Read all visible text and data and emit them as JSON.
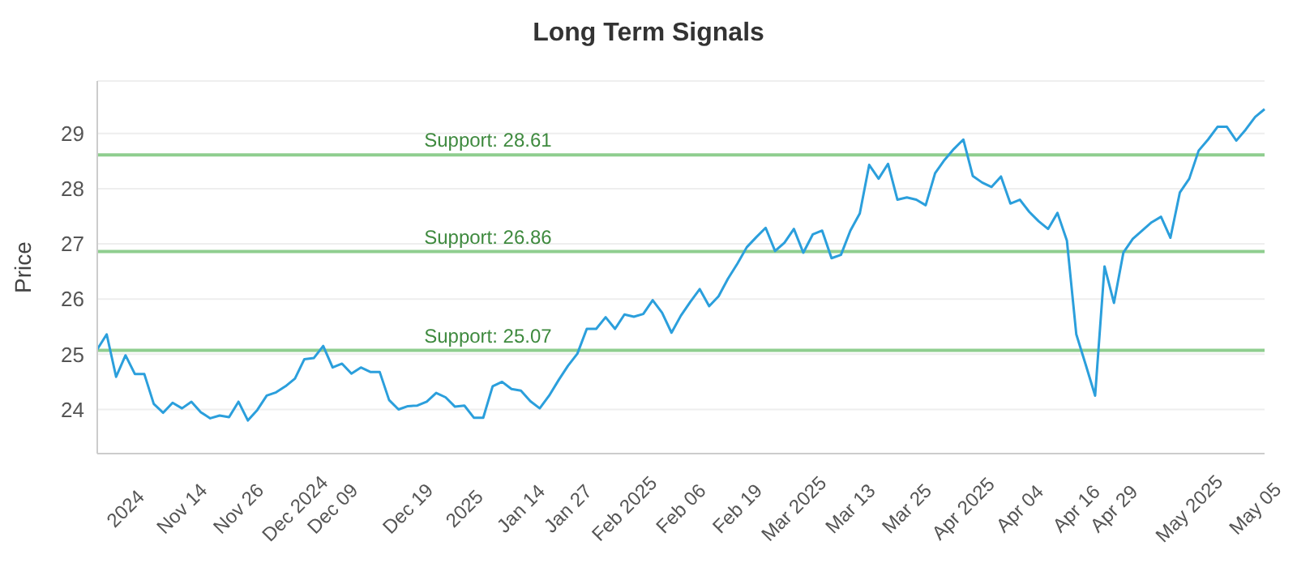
{
  "chart_data": {
    "type": "line",
    "title": "Long Term Signals",
    "ylabel": "Price",
    "categories": [
      null,
      null,
      null,
      "2024",
      null,
      null,
      null,
      null,
      null,
      "Nov 14",
      null,
      null,
      null,
      null,
      null,
      "Nov 26",
      null,
      null,
      null,
      null,
      null,
      "Dec 2024",
      null,
      null,
      null,
      "Dec 09",
      null,
      null,
      null,
      null,
      null,
      null,
      null,
      "Dec 19",
      null,
      null,
      null,
      null,
      null,
      "2025",
      null,
      null,
      null,
      null,
      null,
      "Jan 14",
      null,
      null,
      null,
      null,
      "Jan 27",
      null,
      null,
      null,
      null,
      null,
      "Feb 2025",
      null,
      null,
      null,
      null,
      null,
      "Feb 06",
      null,
      null,
      null,
      null,
      null,
      "Feb 19",
      null,
      null,
      null,
      null,
      null,
      "Mar 2025",
      null,
      null,
      null,
      null,
      null,
      "Mar 13",
      null,
      null,
      null,
      null,
      null,
      "Mar 25",
      null,
      null,
      null,
      null,
      null,
      "Apr 2025",
      null,
      null,
      null,
      null,
      null,
      "Apr 04",
      null,
      null,
      null,
      null,
      null,
      "Apr 16",
      null,
      null,
      null,
      "Apr 29",
      null,
      null,
      null,
      null,
      null,
      null,
      null,
      "May 2025",
      null,
      null,
      null,
      null,
      null,
      null,
      "May 05",
      null
    ],
    "series": [
      {
        "color": "#2b9fdc",
        "values": [
          25.09,
          25.36,
          24.59,
          24.98,
          24.64,
          24.64,
          24.1,
          23.94,
          24.12,
          24.02,
          24.14,
          23.95,
          23.84,
          23.89,
          23.86,
          24.14,
          23.8,
          23.99,
          24.25,
          24.31,
          24.42,
          24.56,
          24.91,
          24.93,
          25.15,
          24.76,
          24.83,
          24.65,
          24.76,
          24.68,
          24.68,
          24.17,
          24.0,
          24.06,
          24.07,
          24.14,
          24.3,
          24.22,
          24.05,
          24.07,
          23.85,
          23.85,
          24.42,
          24.5,
          24.37,
          24.34,
          24.15,
          24.02,
          24.25,
          24.53,
          24.79,
          25.01,
          25.46,
          25.46,
          25.67,
          25.46,
          25.72,
          25.68,
          25.73,
          25.98,
          25.75,
          25.39,
          25.7,
          25.95,
          26.18,
          25.87,
          26.05,
          26.37,
          26.64,
          26.94,
          27.12,
          27.29,
          26.87,
          27.02,
          27.27,
          26.84,
          27.17,
          27.24,
          26.74,
          26.8,
          27.24,
          27.55,
          28.43,
          28.18,
          28.45,
          27.8,
          27.84,
          27.8,
          27.7,
          28.28,
          28.52,
          28.72,
          28.89,
          28.23,
          28.11,
          28.03,
          28.22,
          27.73,
          27.8,
          27.58,
          27.41,
          27.27,
          27.56,
          27.06,
          25.36,
          24.81,
          24.25,
          26.59,
          25.93,
          26.84,
          27.09,
          27.24,
          27.39,
          27.49,
          27.11,
          27.93,
          28.18,
          28.69,
          28.89,
          29.12,
          29.12,
          28.87,
          29.07,
          29.3,
          29.44
        ]
      }
    ],
    "ylim": [
      23.2,
      29.95
    ],
    "yticks": [
      24,
      25,
      26,
      27,
      28,
      29
    ],
    "grid": "y",
    "marker": "none",
    "line_style": "solid",
    "ref_lines": [
      {
        "axis": "y",
        "value": 28.61,
        "label": "Support: 28.61",
        "color": "#8fce8f"
      },
      {
        "axis": "y",
        "value": 26.86,
        "label": "Support: 26.86",
        "color": "#8fce8f"
      },
      {
        "axis": "y",
        "value": 25.07,
        "label": "Support: 25.07",
        "color": "#8fce8f"
      }
    ]
  }
}
